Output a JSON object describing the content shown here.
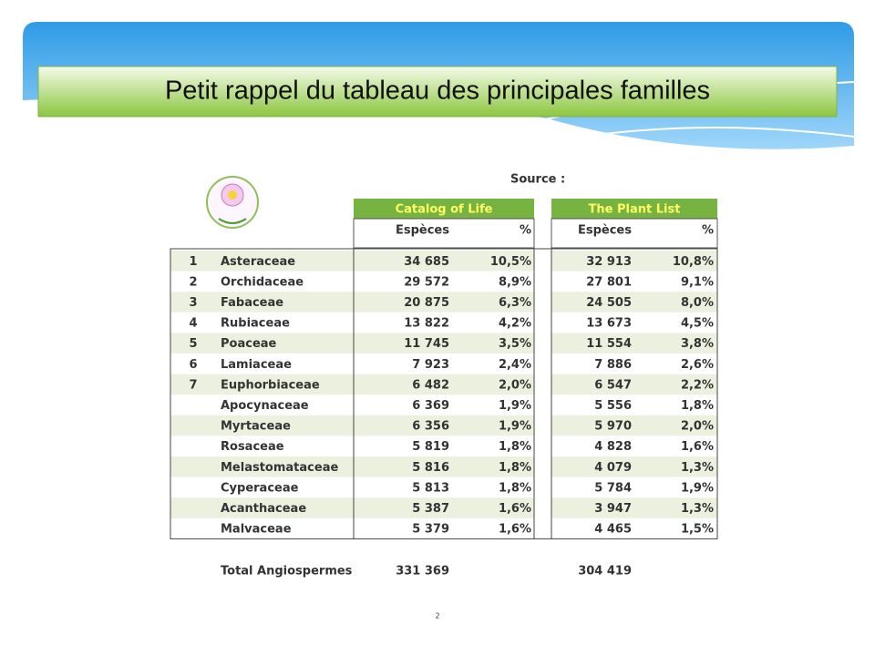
{
  "header": {
    "title": "Petit rappel du tableau des principales familles"
  },
  "source_label": "Source :",
  "table": {
    "groups": [
      "Catalog of Life",
      "The Plant List"
    ],
    "subheaders": [
      "Espèces",
      "%",
      "Espèces",
      "%"
    ],
    "rows": [
      {
        "rank": "1",
        "family": "Asteraceae",
        "cells": [
          "34 685",
          "10,5%",
          "32 913",
          "10,8%"
        ]
      },
      {
        "rank": "2",
        "family": "Orchidaceae",
        "cells": [
          "29 572",
          "8,9%",
          "27 801",
          "9,1%"
        ]
      },
      {
        "rank": "3",
        "family": "Fabaceae",
        "cells": [
          "20 875",
          "6,3%",
          "24 505",
          "8,0%"
        ]
      },
      {
        "rank": "4",
        "family": "Rubiaceae",
        "cells": [
          "13 822",
          "4,2%",
          "13 673",
          "4,5%"
        ]
      },
      {
        "rank": "5",
        "family": "Poaceae",
        "cells": [
          "11 745",
          "3,5%",
          "11 554",
          "3,8%"
        ]
      },
      {
        "rank": "6",
        "family": "Lamiaceae",
        "cells": [
          "7 923",
          "2,4%",
          "7 886",
          "2,6%"
        ]
      },
      {
        "rank": "7",
        "family": "Euphorbiaceae",
        "cells": [
          "6 482",
          "2,0%",
          "6 547",
          "2,2%"
        ]
      },
      {
        "family": "Apocynaceae",
        "cells": [
          "6 369",
          "1,9%",
          "5 556",
          "1,8%"
        ]
      },
      {
        "family": "Myrtaceae",
        "cells": [
          "6 356",
          "1,9%",
          "5 970",
          "2,0%"
        ]
      },
      {
        "family": "Rosaceae",
        "cells": [
          "5 819",
          "1,8%",
          "4 828",
          "1,6%"
        ]
      },
      {
        "family": "Melastomataceae",
        "cells": [
          "5 816",
          "1,8%",
          "4 079",
          "1,3%"
        ]
      },
      {
        "family": "Cyperaceae",
        "cells": [
          "5 813",
          "1,8%",
          "5 784",
          "1,9%"
        ]
      },
      {
        "family": "Acanthaceae",
        "cells": [
          "5 387",
          "1,6%",
          "3 947",
          "1,3%"
        ]
      },
      {
        "family": "Malvaceae",
        "cells": [
          "5 379",
          "1,6%",
          "4 465",
          "1,5%"
        ]
      }
    ],
    "total": {
      "label": "Total Angiospermes",
      "cells": [
        "331 369",
        "304 419"
      ]
    }
  },
  "page_number": "2"
}
